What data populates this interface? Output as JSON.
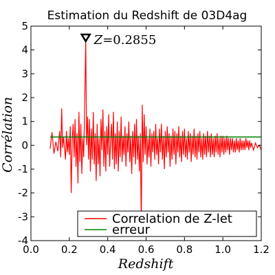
{
  "chart_data": {
    "type": "line",
    "title": "Estimation du Redshift de 03D4ag",
    "xlabel": "Redshift",
    "ylabel": "Corrélation",
    "xlim": [
      0.0,
      1.2
    ],
    "ylim": [
      -4,
      5
    ],
    "xticks": [
      "0.0",
      "0.2",
      "0.4",
      "0.6",
      "0.8",
      "1.0",
      "1.2"
    ],
    "yticks": [
      "-4",
      "-3",
      "-2",
      "-1",
      "0",
      "1",
      "2",
      "3",
      "4",
      "5"
    ],
    "legend_position": "bottom-right",
    "annotation": {
      "label": "Z",
      "value": "=0.2855",
      "x": 0.2855,
      "y": 4.45
    },
    "series": [
      {
        "name": "Correlation de Z-let",
        "color": "#ff0000",
        "points": [
          [
            0.1,
            -0.15
          ],
          [
            0.11,
            0.55
          ],
          [
            0.12,
            -0.35
          ],
          [
            0.13,
            0.15
          ],
          [
            0.14,
            -0.25
          ],
          [
            0.15,
            0.6
          ],
          [
            0.155,
            -0.5
          ],
          [
            0.16,
            1.55
          ],
          [
            0.165,
            -0.1
          ],
          [
            0.17,
            0.35
          ],
          [
            0.18,
            -0.6
          ],
          [
            0.185,
            0.6
          ],
          [
            0.19,
            -0.3
          ],
          [
            0.195,
            0.3
          ],
          [
            0.2,
            -0.4
          ],
          [
            0.205,
            0.8
          ],
          [
            0.21,
            -2.0
          ],
          [
            0.215,
            0.2
          ],
          [
            0.22,
            0.9
          ],
          [
            0.225,
            -0.5
          ],
          [
            0.23,
            1.1
          ],
          [
            0.235,
            -0.9
          ],
          [
            0.24,
            0.5
          ],
          [
            0.245,
            -1.6
          ],
          [
            0.25,
            1.4
          ],
          [
            0.255,
            -0.7
          ],
          [
            0.26,
            0.9
          ],
          [
            0.265,
            -1.2
          ],
          [
            0.27,
            0.3
          ],
          [
            0.275,
            -0.5
          ],
          [
            0.28,
            1.7
          ],
          [
            0.2855,
            4.45
          ],
          [
            0.29,
            0.0
          ],
          [
            0.295,
            1.2
          ],
          [
            0.3,
            -0.6
          ],
          [
            0.305,
            1.1
          ],
          [
            0.31,
            -1.1
          ],
          [
            0.315,
            0.7
          ],
          [
            0.32,
            -0.6
          ],
          [
            0.325,
            1.4
          ],
          [
            0.33,
            -0.8
          ],
          [
            0.335,
            0.5
          ],
          [
            0.34,
            -1.5
          ],
          [
            0.345,
            0.9
          ],
          [
            0.35,
            -0.8
          ],
          [
            0.355,
            0.3
          ],
          [
            0.36,
            -1.3
          ],
          [
            0.365,
            1.1
          ],
          [
            0.37,
            -0.2
          ],
          [
            0.375,
            1.5
          ],
          [
            0.38,
            -0.9
          ],
          [
            0.385,
            0.6
          ],
          [
            0.39,
            -1.1
          ],
          [
            0.395,
            0.8
          ],
          [
            0.4,
            -0.4
          ],
          [
            0.405,
            1.3
          ],
          [
            0.41,
            -0.9
          ],
          [
            0.415,
            0.2
          ],
          [
            0.42,
            0.9
          ],
          [
            0.425,
            -0.6
          ],
          [
            0.43,
            1.4
          ],
          [
            0.435,
            -1.0
          ],
          [
            0.44,
            0.5
          ],
          [
            0.445,
            -0.8
          ],
          [
            0.45,
            1.0
          ],
          [
            0.455,
            -1.1
          ],
          [
            0.46,
            0.6
          ],
          [
            0.465,
            -0.5
          ],
          [
            0.47,
            1.2
          ],
          [
            0.475,
            -0.7
          ],
          [
            0.48,
            0.4
          ],
          [
            0.485,
            -0.4
          ],
          [
            0.49,
            0.8
          ],
          [
            0.495,
            -0.9
          ],
          [
            0.5,
            0.5
          ],
          [
            0.505,
            -0.3
          ],
          [
            0.51,
            1.0
          ],
          [
            0.515,
            -0.7
          ],
          [
            0.52,
            0.4
          ],
          [
            0.525,
            -1.2
          ],
          [
            0.53,
            0.6
          ],
          [
            0.535,
            -0.5
          ],
          [
            0.54,
            0.9
          ],
          [
            0.545,
            -0.8
          ],
          [
            0.55,
            1.1
          ],
          [
            0.555,
            -0.6
          ],
          [
            0.56,
            0.4
          ],
          [
            0.565,
            -1.1
          ],
          [
            0.57,
            0.5
          ],
          [
            0.575,
            -3.4
          ],
          [
            0.58,
            1.7
          ],
          [
            0.585,
            -0.7
          ],
          [
            0.59,
            1.3
          ],
          [
            0.595,
            -0.4
          ],
          [
            0.6,
            0.8
          ],
          [
            0.605,
            -0.8
          ],
          [
            0.61,
            0.3
          ],
          [
            0.615,
            -0.5
          ],
          [
            0.62,
            0.7
          ],
          [
            0.625,
            -0.9
          ],
          [
            0.63,
            0.5
          ],
          [
            0.635,
            -0.3
          ],
          [
            0.64,
            0.6
          ],
          [
            0.645,
            -0.6
          ],
          [
            0.65,
            0.9
          ],
          [
            0.655,
            -0.4
          ],
          [
            0.66,
            0.3
          ],
          [
            0.665,
            -0.8
          ],
          [
            0.67,
            0.7
          ],
          [
            0.675,
            -0.3
          ],
          [
            0.68,
            0.9
          ],
          [
            0.685,
            -0.6
          ],
          [
            0.69,
            0.4
          ],
          [
            0.695,
            -1.0
          ],
          [
            0.7,
            0.6
          ],
          [
            0.705,
            -0.5
          ],
          [
            0.71,
            0.8
          ],
          [
            0.715,
            -0.3
          ],
          [
            0.72,
            0.5
          ],
          [
            0.725,
            -0.9
          ],
          [
            0.73,
            0.4
          ],
          [
            0.735,
            -0.6
          ],
          [
            0.74,
            0.7
          ],
          [
            0.745,
            -0.4
          ],
          [
            0.75,
            0.6
          ],
          [
            0.755,
            -0.8
          ],
          [
            0.76,
            0.5
          ],
          [
            0.765,
            -0.3
          ],
          [
            0.77,
            0.8
          ],
          [
            0.775,
            -0.5
          ],
          [
            0.78,
            0.4
          ],
          [
            0.785,
            -0.7
          ],
          [
            0.79,
            0.6
          ],
          [
            0.795,
            -0.4
          ],
          [
            0.8,
            0.7
          ],
          [
            0.805,
            -0.5
          ],
          [
            0.81,
            0.3
          ],
          [
            0.815,
            -0.6
          ],
          [
            0.82,
            0.6
          ],
          [
            0.825,
            -0.3
          ],
          [
            0.83,
            0.5
          ],
          [
            0.835,
            -0.7
          ],
          [
            0.84,
            0.4
          ],
          [
            0.845,
            -0.4
          ],
          [
            0.85,
            0.7
          ],
          [
            0.855,
            -0.5
          ],
          [
            0.86,
            0.4
          ],
          [
            0.865,
            -0.6
          ],
          [
            0.87,
            0.5
          ],
          [
            0.875,
            -0.3
          ],
          [
            0.88,
            0.6
          ],
          [
            0.885,
            -0.5
          ],
          [
            0.89,
            0.3
          ],
          [
            0.895,
            -0.6
          ],
          [
            0.9,
            0.5
          ],
          [
            0.905,
            -0.4
          ],
          [
            0.91,
            0.4
          ],
          [
            0.915,
            -0.5
          ],
          [
            0.92,
            0.6
          ],
          [
            0.925,
            -0.3
          ],
          [
            0.93,
            0.4
          ],
          [
            0.935,
            -0.5
          ],
          [
            0.94,
            0.5
          ],
          [
            0.945,
            -0.4
          ],
          [
            0.95,
            0.3
          ],
          [
            0.955,
            -0.5
          ],
          [
            0.96,
            0.4
          ],
          [
            0.965,
            -0.3
          ],
          [
            0.97,
            0.5
          ],
          [
            0.975,
            -0.4
          ],
          [
            0.98,
            0.3
          ],
          [
            0.985,
            -0.5
          ],
          [
            0.99,
            0.4
          ],
          [
            0.995,
            -0.3
          ],
          [
            1.0,
            0.4
          ],
          [
            1.005,
            -0.4
          ],
          [
            1.01,
            0.3
          ],
          [
            1.015,
            -0.3
          ],
          [
            1.02,
            0.4
          ],
          [
            1.025,
            -0.2
          ],
          [
            1.03,
            0.3
          ],
          [
            1.035,
            -0.4
          ],
          [
            1.04,
            0.3
          ],
          [
            1.045,
            -0.2
          ],
          [
            1.05,
            0.3
          ],
          [
            1.055,
            -0.3
          ],
          [
            1.06,
            0.2
          ],
          [
            1.065,
            -0.3
          ],
          [
            1.07,
            0.3
          ],
          [
            1.075,
            -0.2
          ],
          [
            1.08,
            0.2
          ],
          [
            1.085,
            -0.3
          ],
          [
            1.09,
            0.3
          ],
          [
            1.095,
            -0.2
          ],
          [
            1.1,
            0.2
          ],
          [
            1.105,
            -0.2
          ],
          [
            1.11,
            0.2
          ],
          [
            1.115,
            -0.2
          ],
          [
            1.12,
            0.3
          ],
          [
            1.125,
            -0.1
          ],
          [
            1.13,
            0.2
          ],
          [
            1.135,
            -0.2
          ],
          [
            1.14,
            0.2
          ],
          [
            1.145,
            -0.1
          ],
          [
            1.15,
            0.1
          ],
          [
            1.16,
            -0.2
          ],
          [
            1.17,
            0.1
          ],
          [
            1.18,
            -0.1
          ],
          [
            1.19,
            0.0
          ],
          [
            1.2,
            -0.2
          ]
        ]
      },
      {
        "name": "erreur",
        "color": "#008000",
        "points": [
          [
            0.1,
            0.35
          ],
          [
            1.2,
            0.35
          ]
        ]
      }
    ]
  }
}
